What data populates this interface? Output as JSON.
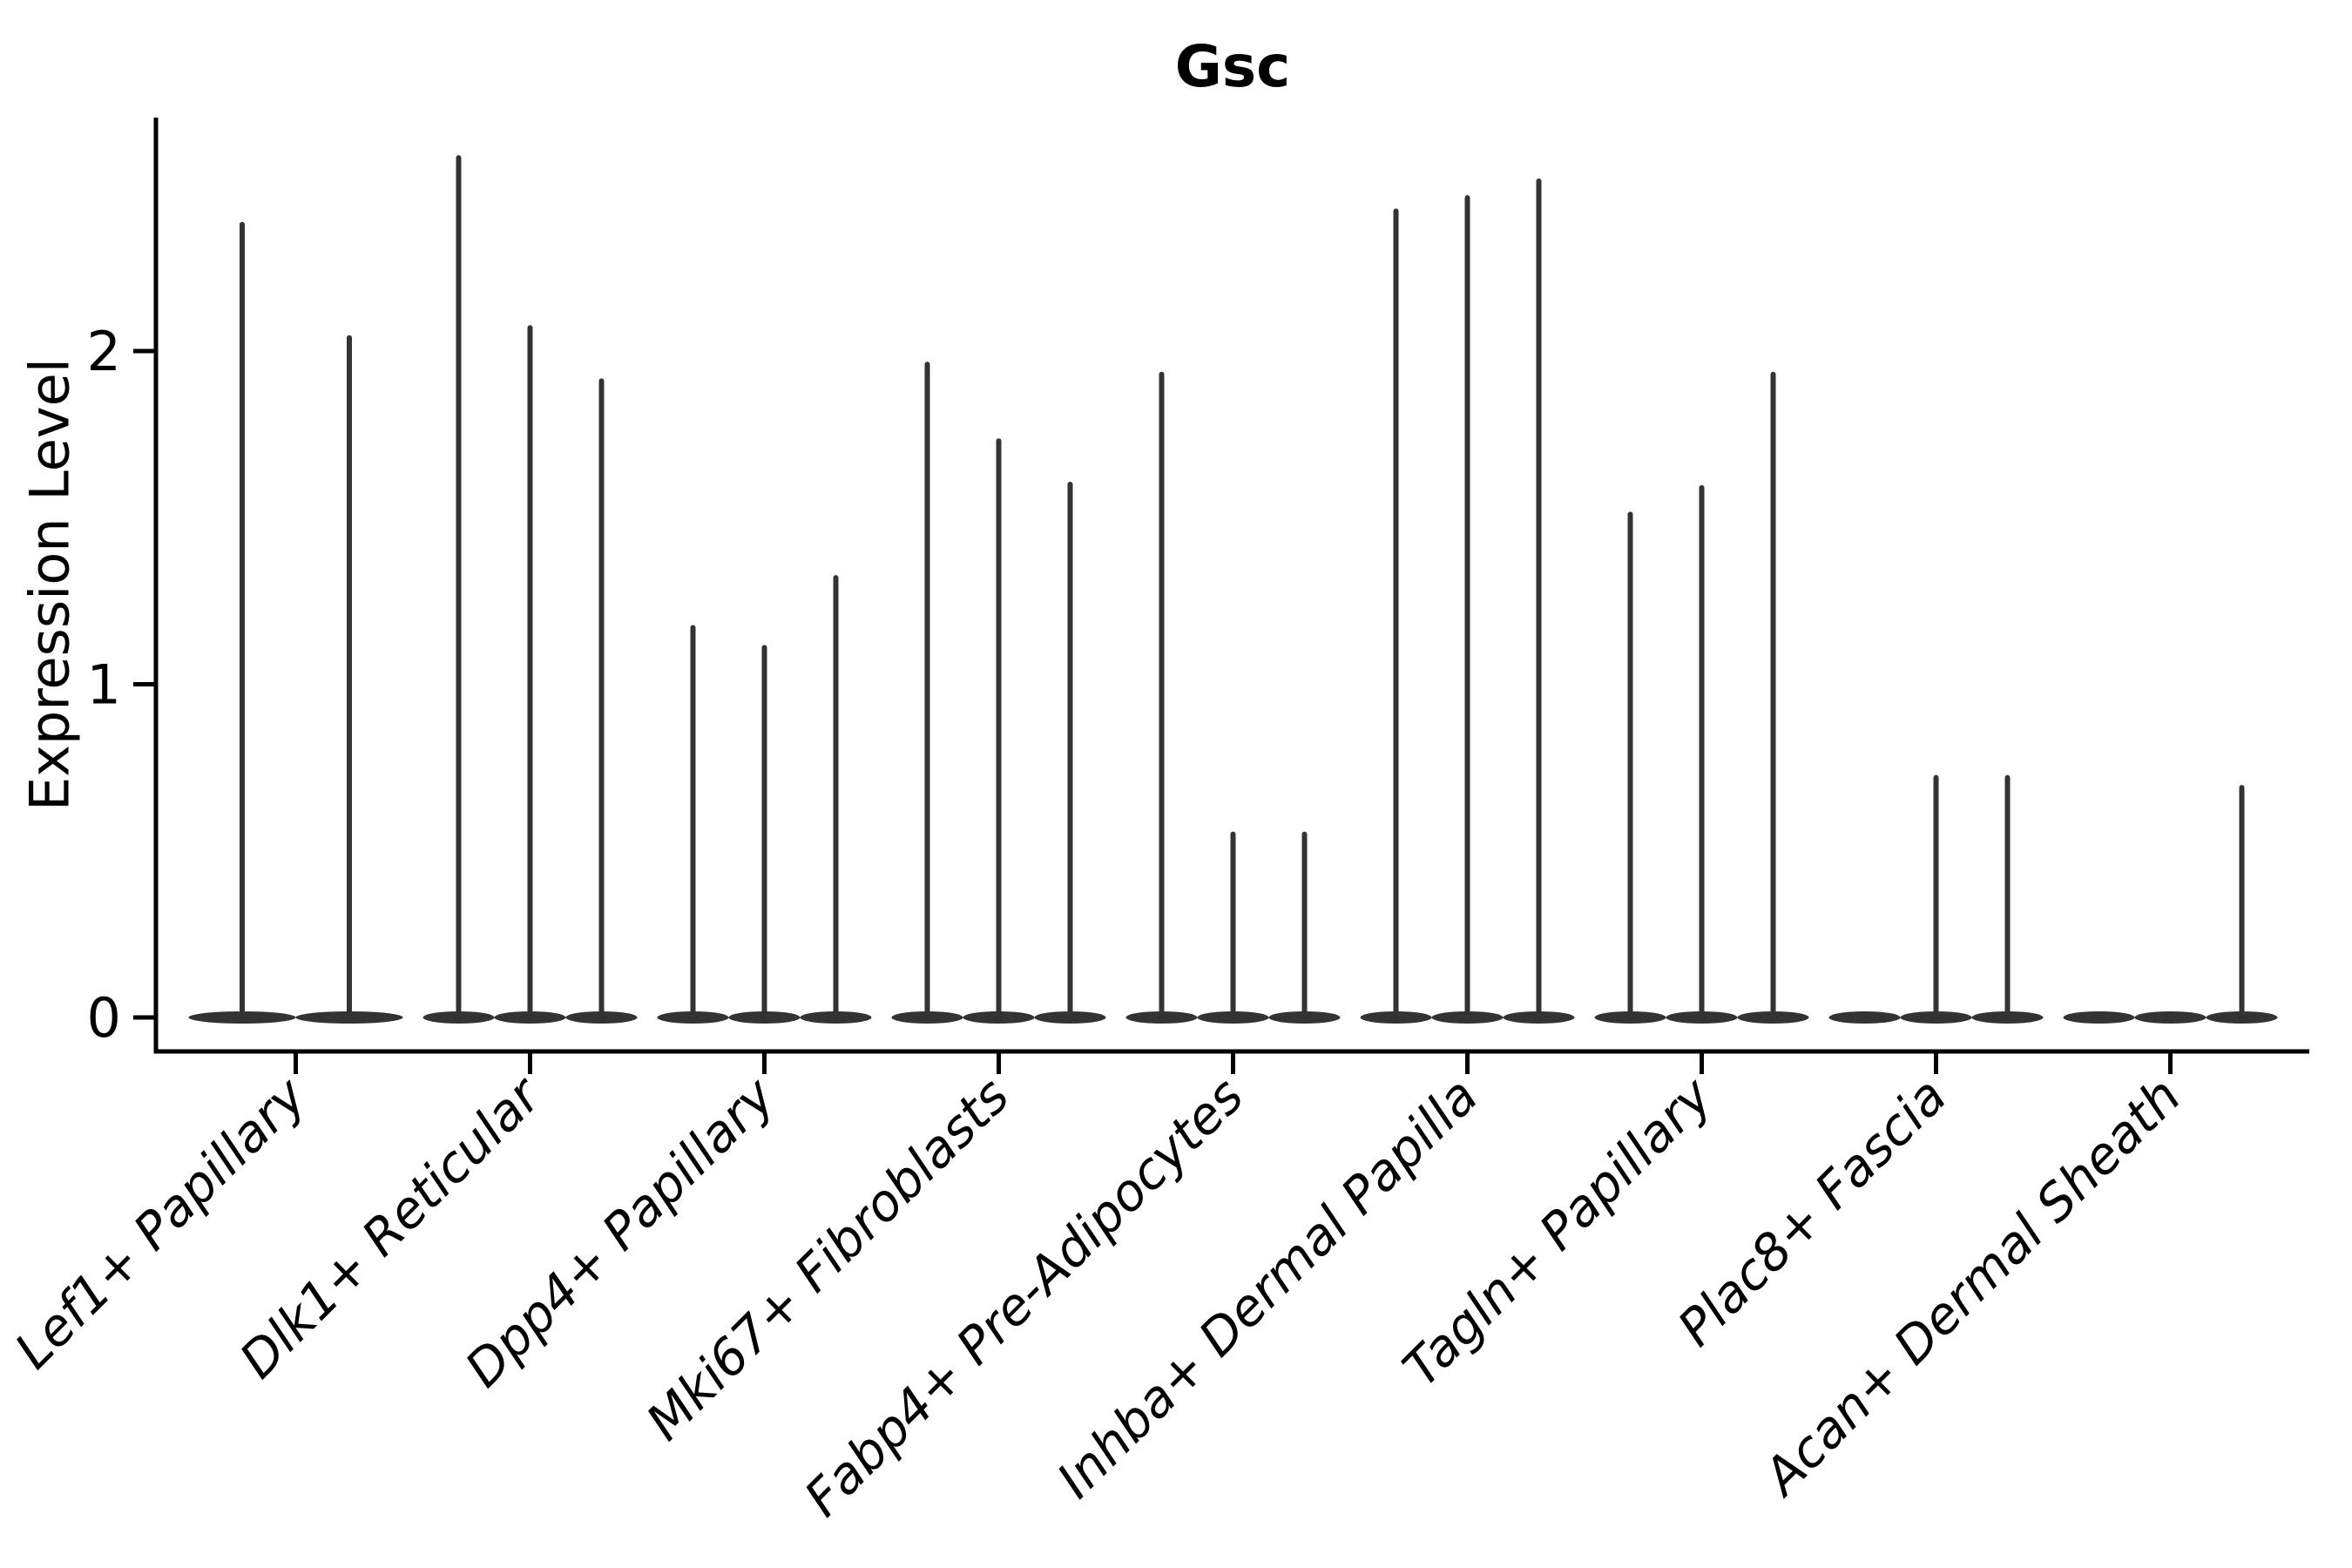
{
  "title": "Gsc",
  "y_axis": {
    "label": "Expression Level",
    "ticks": [
      "0",
      "1",
      "2"
    ]
  },
  "colors": {
    "violin": "#333333",
    "axis": "#000000",
    "text": "#000000",
    "background": "#ffffff"
  },
  "chart_data": {
    "type": "violin",
    "title": "Gsc",
    "xlabel": "",
    "ylabel": "Expression Level",
    "ylim": [
      -0.09,
      2.72
    ],
    "yticks": [
      0,
      1,
      2
    ],
    "grid": false,
    "legend": "none",
    "style_note": "Seurat-style stacked violin: each violin's density mass sits flat at 0 with a single thin spike rising to its maximum expression value; x labels rotated 45deg italic",
    "categories": [
      "Lef1+ Papillary",
      "Dlk1+ Reticular",
      "Dpp4+ Papillary",
      "Mki67+ Fibroblasts",
      "Fabp4+ Pre-Adipocytes",
      "Inhba+ Dermal Papilla",
      "Tagln+ Papillary",
      "Plac8+ Fascia",
      "Acan+ Dermal Sheath"
    ],
    "series": [
      {
        "category": "Lef1+ Papillary",
        "violin_maxima": [
          2.38,
          2.04
        ]
      },
      {
        "category": "Dlk1+ Reticular",
        "violin_maxima": [
          2.58,
          2.07,
          1.91
        ]
      },
      {
        "category": "Dpp4+ Papillary",
        "violin_maxima": [
          1.17,
          1.11,
          1.32
        ]
      },
      {
        "category": "Mki67+ Fibroblasts",
        "violin_maxima": [
          1.96,
          1.73,
          1.6
        ]
      },
      {
        "category": "Fabp4+ Pre-Adipocytes",
        "violin_maxima": [
          1.93,
          0.55,
          0.55
        ]
      },
      {
        "category": "Inhba+ Dermal Papilla",
        "violin_maxima": [
          2.42,
          2.46,
          2.51
        ]
      },
      {
        "category": "Tagln+ Papillary",
        "violin_maxima": [
          1.51,
          1.59,
          1.93
        ]
      },
      {
        "category": "Plac8+ Fascia",
        "violin_maxima": [
          0,
          0.72,
          0.72
        ]
      },
      {
        "category": "Acan+ Dermal Sheath",
        "violin_maxima": [
          0,
          0,
          0.69
        ]
      }
    ]
  }
}
